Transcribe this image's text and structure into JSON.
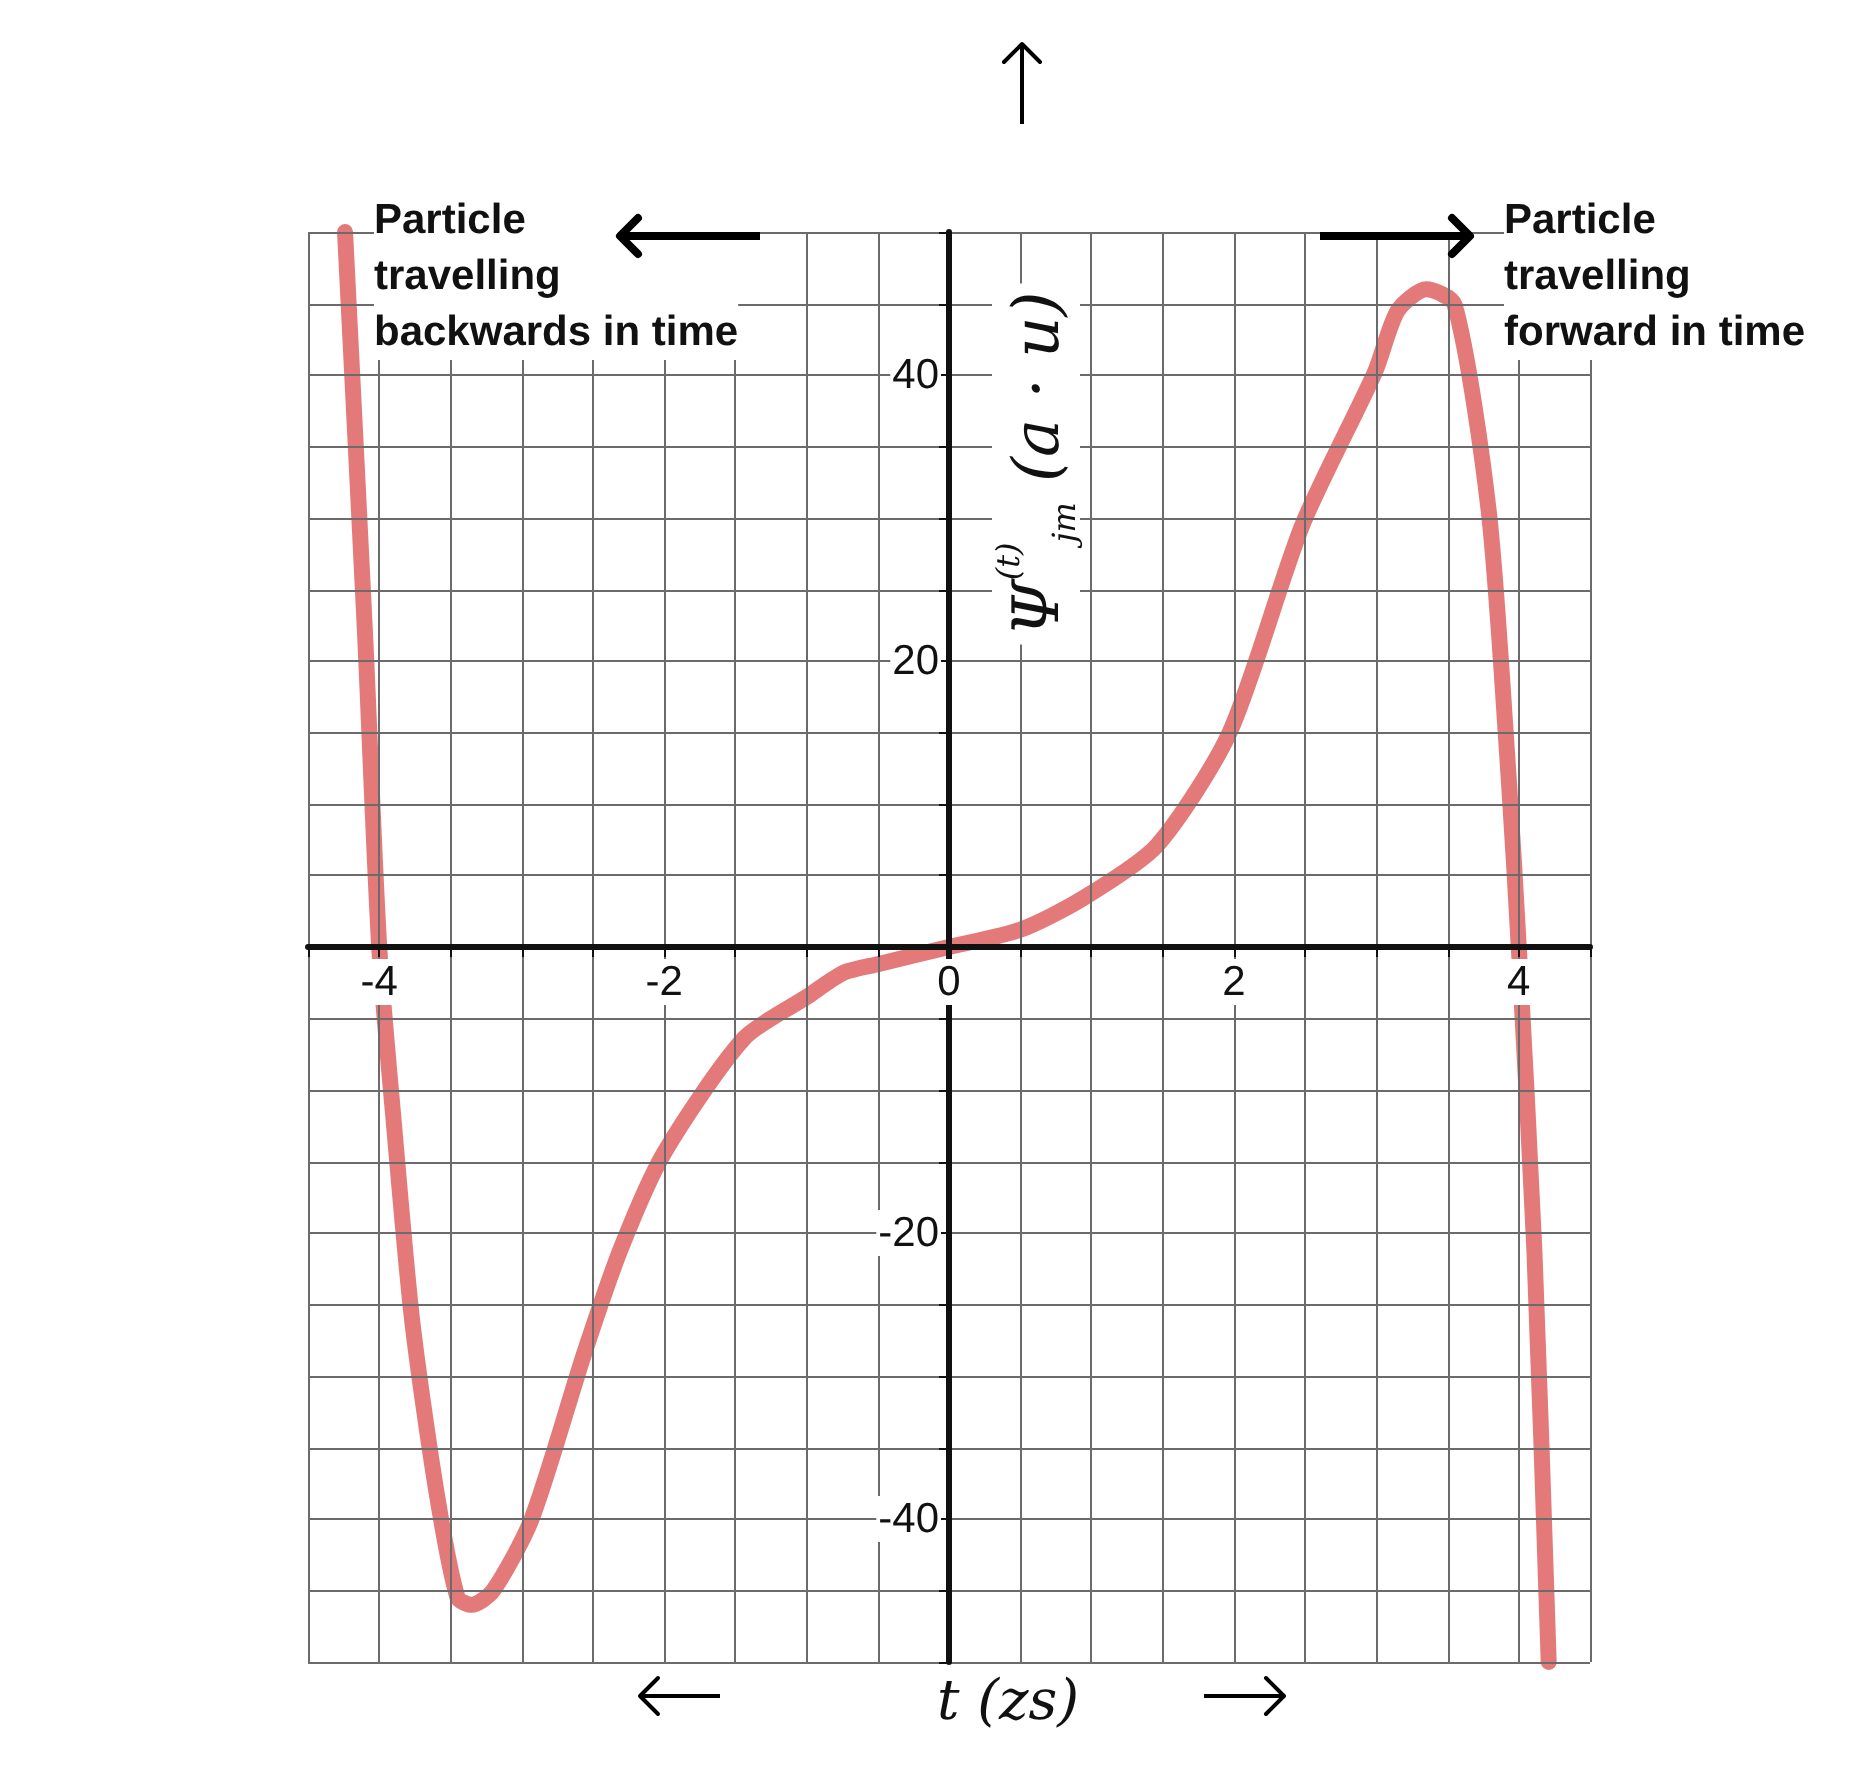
{
  "chart_data": {
    "type": "line",
    "xlabel": "t (zs)",
    "ylabel": "Ψ$^{(t)}$$_{jm}$ (a · u)",
    "annotations": [
      "Particle\ntravelling\nbackwards in time",
      "Particle\ntravelling\nforward in time"
    ],
    "x": [
      -4.24,
      -4.1,
      -4,
      -3.9,
      -3.77,
      -3.6,
      -3.45,
      -3.35,
      -3.2,
      -2.93,
      -2.56,
      -2.3,
      -2,
      -1.44,
      -1,
      -0.74,
      -0.5,
      0,
      0.5,
      0.94,
      1.46,
      1.97,
      2.48,
      2.99,
      3.15,
      3.35,
      3.55,
      3.79,
      3.93,
      4,
      4.11,
      4.21
    ],
    "series": [
      {
        "color": "#e06a6a",
        "values": [
          50,
          22,
          0,
          -12,
          -26,
          -38,
          -45.5,
          -46,
          -45,
          -40,
          -28.4,
          -21,
          -14.4,
          -6.4,
          -3.5,
          -1.8,
          -1.2,
          0,
          1.2,
          3.4,
          7.1,
          15,
          29.5,
          40.2,
          44.5,
          46,
          44.9,
          30.4,
          11.7,
          0,
          -21.3,
          -50
        ]
      }
    ],
    "xlim": [
      -4.5,
      4.5
    ],
    "xticks": [
      {
        "value": -4.5,
        "label": null
      },
      -4,
      {
        "value": -3.5,
        "label": null
      },
      {
        "value": -3,
        "label": null
      },
      {
        "value": -2.5,
        "label": null
      },
      -2,
      {
        "value": -1.5,
        "label": null
      },
      {
        "value": -1,
        "label": null
      },
      {
        "value": -0.5,
        "label": null
      },
      0,
      {
        "value": 0.5,
        "label": null
      },
      {
        "value": 1,
        "label": null
      },
      {
        "value": 1.5,
        "label": null
      },
      2,
      {
        "value": 2.5,
        "label": null
      },
      {
        "value": 3,
        "label": null
      },
      {
        "value": 3.5,
        "label": null
      },
      4,
      {
        "value": 4.5,
        "label": null
      }
    ],
    "ylim": [
      -50,
      50
    ],
    "yticks": [
      {
        "value": -50,
        "label": null
      },
      {
        "value": -45,
        "label": null
      },
      -40,
      {
        "value": -35,
        "label": null
      },
      {
        "value": -30,
        "label": null
      },
      {
        "value": -25,
        "label": null
      },
      -20,
      {
        "value": -15,
        "label": null
      },
      {
        "value": -10,
        "label": null
      },
      {
        "value": -5,
        "label": null
      },
      {
        "value": 0,
        "label": null
      },
      {
        "value": 5,
        "label": null
      },
      {
        "value": 10,
        "label": null
      },
      {
        "value": 15,
        "label": null
      },
      20,
      {
        "value": 25,
        "label": null
      },
      {
        "value": 30,
        "label": null
      },
      {
        "value": 35,
        "label": null
      },
      40,
      {
        "value": 45,
        "label": null
      },
      {
        "value": 50,
        "label": null
      }
    ],
    "grid": true,
    "marker": "none",
    "line_style": "solid"
  }
}
